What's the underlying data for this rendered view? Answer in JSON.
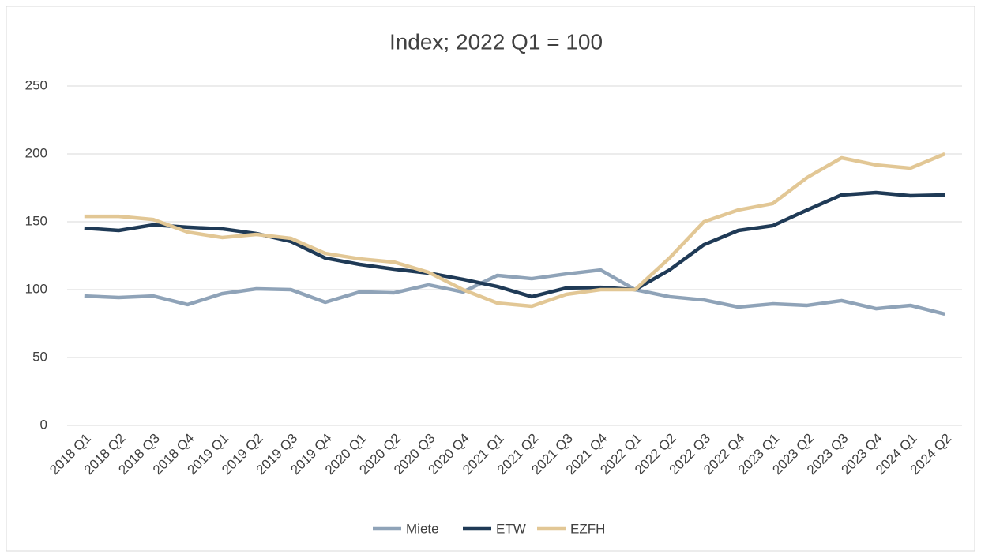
{
  "chart_data": {
    "type": "line",
    "title": "Index; 2022 Q1 = 100",
    "categories": [
      "2018 Q1",
      "2018 Q2",
      "2018 Q3",
      "2018 Q4",
      "2019 Q1",
      "2019 Q2",
      "2019 Q3",
      "2019 Q4",
      "2020 Q1",
      "2020 Q2",
      "2020 Q3",
      "2020 Q4",
      "2021 Q1",
      "2021 Q2",
      "2021 Q3",
      "2021 Q4",
      "2022 Q1",
      "2022 Q2",
      "2022 Q3",
      "2022 Q4",
      "2023 Q1",
      "2023 Q2",
      "2023 Q3",
      "2023 Q4",
      "2024 Q1",
      "2024 Q2"
    ],
    "series": [
      {
        "name": "Miete",
        "color": "#8fa3b8",
        "values": [
          95.3,
          94.2,
          95.3,
          89,
          97,
          100.6,
          100,
          90.7,
          98.3,
          97.7,
          103.5,
          98.3,
          110.5,
          108.1,
          111.6,
          114.5,
          100,
          94.8,
          92.4,
          87.2,
          89.5,
          88.4,
          91.9,
          86,
          88.4,
          82
        ]
      },
      {
        "name": "ETW",
        "color": "#1f3a56",
        "values": [
          145.3,
          143.6,
          147.7,
          146,
          144.8,
          141.3,
          135.5,
          123.3,
          118.6,
          115.1,
          112.2,
          107.6,
          102.3,
          94.8,
          101.2,
          101.7,
          100,
          114.5,
          133.1,
          143.6,
          147.1,
          158.7,
          169.8,
          171.5,
          169.2,
          169.8
        ]
      },
      {
        "name": "EZFH",
        "color": "#e2c795",
        "values": [
          154,
          154,
          151.7,
          142.4,
          138.4,
          140.7,
          137.8,
          126.7,
          122.7,
          120.3,
          112.8,
          100,
          90.1,
          87.8,
          96.5,
          100,
          100,
          123.3,
          150,
          158.7,
          163.4,
          182.6,
          197.1,
          191.9,
          189.5,
          200
        ]
      }
    ],
    "ylim": [
      0,
      250
    ],
    "yticks": [
      0,
      50,
      100,
      150,
      200,
      250
    ],
    "grid": true,
    "legend": "bottom"
  }
}
